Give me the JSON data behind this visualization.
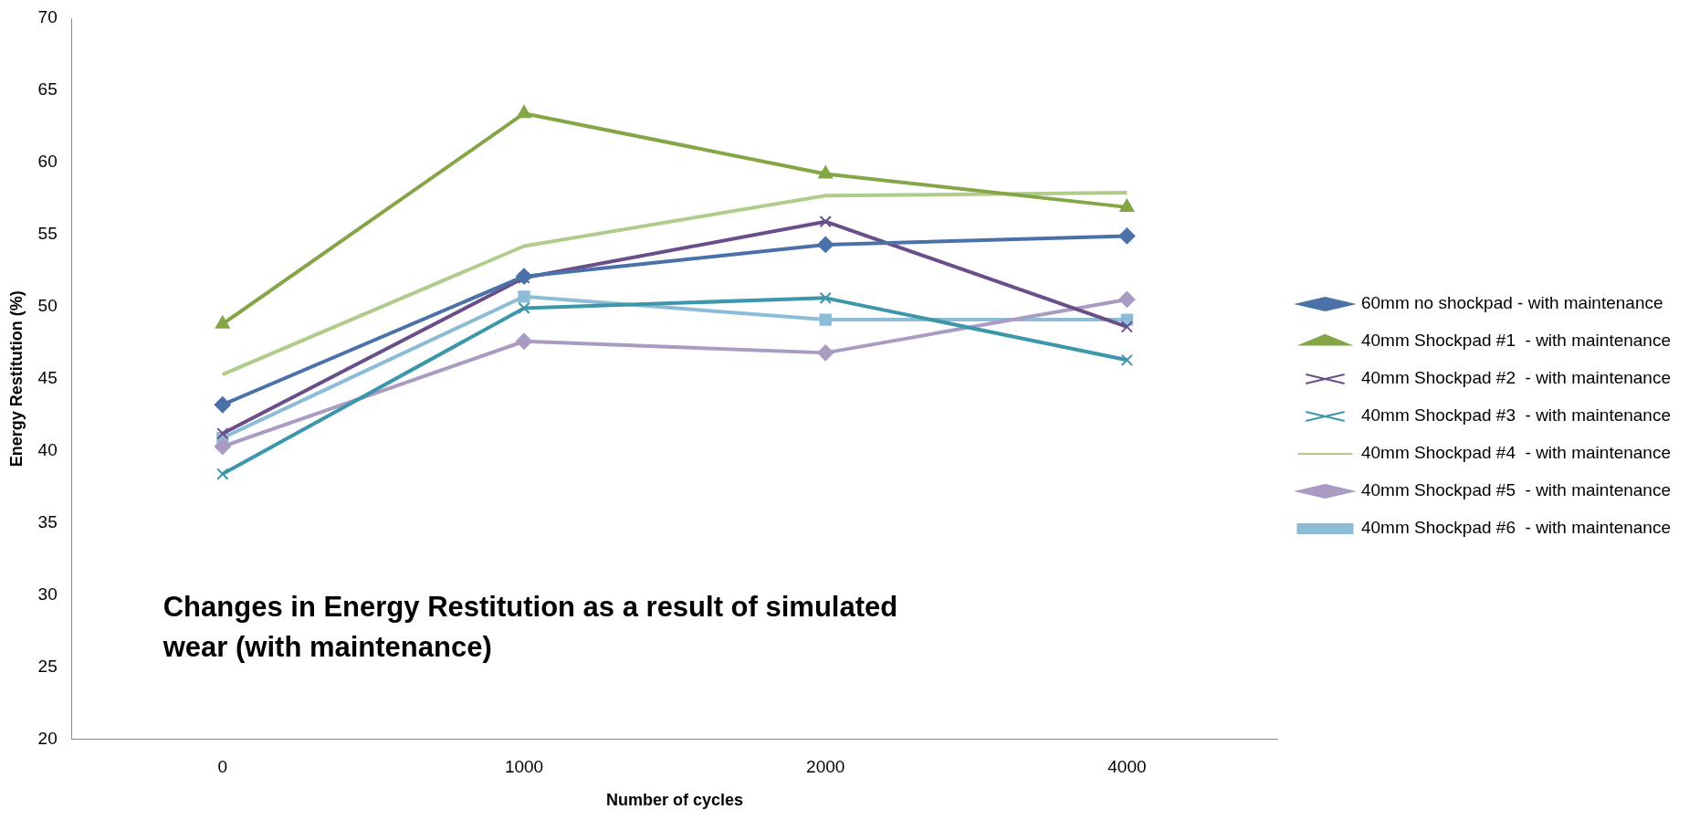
{
  "chart_data": {
    "type": "line",
    "title": "Changes in Energy Restitution as a result of simulated wear (with maintenance)",
    "xlabel": "Number of cycles",
    "ylabel": "Energy Restitution (%)",
    "categories": [
      "0",
      "1000",
      "2000",
      "4000"
    ],
    "ylim": [
      20,
      70
    ],
    "yticks": [
      20,
      25,
      30,
      35,
      40,
      45,
      50,
      55,
      60,
      65,
      70
    ],
    "grid": false,
    "legend": "right",
    "series": [
      {
        "name": "60mm no shockpad - with maintenance",
        "color": "#4a72a9",
        "marker": "diamond",
        "values": [
          43.2,
          52.1,
          54.3,
          54.9
        ]
      },
      {
        "name": "40mm Shockpad #1  - with maintenance",
        "color": "#84a647",
        "marker": "triangle",
        "values": [
          48.8,
          63.4,
          59.2,
          56.9
        ]
      },
      {
        "name": "40mm Shockpad #2  - with maintenance",
        "color": "#6a4e8a",
        "marker": "cross",
        "values": [
          41.2,
          52.0,
          55.9,
          48.6
        ]
      },
      {
        "name": "40mm Shockpad #3  - with maintenance",
        "color": "#3c97ab",
        "marker": "cross",
        "values": [
          38.4,
          49.9,
          50.6,
          46.3
        ]
      },
      {
        "name": "40mm Shockpad #4  - with maintenance",
        "color": "#b0cc8c",
        "marker": "none",
        "values": [
          45.3,
          54.2,
          57.7,
          57.9
        ]
      },
      {
        "name": "40mm Shockpad #5  - with maintenance",
        "color": "#a99bc2",
        "marker": "diamond",
        "values": [
          40.3,
          47.6,
          46.8,
          50.5
        ]
      },
      {
        "name": "40mm Shockpad #6  - with maintenance",
        "color": "#8cbcd6",
        "marker": "square",
        "values": [
          40.9,
          50.7,
          49.1,
          49.1
        ]
      }
    ]
  }
}
